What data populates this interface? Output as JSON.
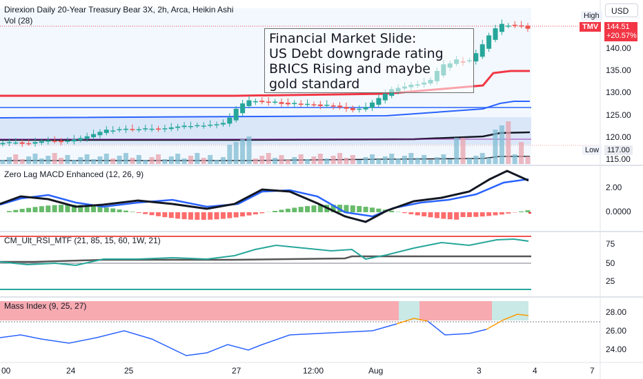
{
  "main": {
    "title": "Direxion Daily 20-Year Treasury Bear 3X, 2h, Arca, Heikin Ashi",
    "volume_title": "Vol (28)",
    "currency_button": "USD",
    "high_label": "High",
    "low_label": "Low",
    "low_value": "117.00",
    "ticker_tag": "TMV",
    "last_price": "144.51",
    "last_change": "+20.57%",
    "price_axis": [
      "140.00",
      "135.00",
      "130.00",
      "125.00",
      "120.00",
      "115.00"
    ]
  },
  "textbox": {
    "lines": [
      "Financial Market Slide:",
      "US Debt downgrade rating",
      "BRICS Rising and maybe",
      "gold standard"
    ]
  },
  "macd": {
    "title": "Zero Lag MACD Enhanced (12, 26, 9)",
    "axis": [
      "2.00",
      "0.0000"
    ]
  },
  "rsi": {
    "title": "CM_Ult_RSI_MTF (21, 85, 15, 60, 1W, 21)",
    "axis": [
      "75",
      "50",
      "25"
    ]
  },
  "mass": {
    "title": "Mass Index (9, 25, 27)",
    "axis": [
      "28.00",
      "26.00",
      "24.00"
    ]
  },
  "time_axis": [
    "00",
    "24",
    "25",
    "27",
    "12:00",
    "Aug",
    "3",
    "4",
    "7"
  ],
  "colors": {
    "up": "#26a69a",
    "down": "#ef5350",
    "accent_red": "#f23645",
    "blue": "#2962ff",
    "black": "#131722"
  },
  "chart_data": [
    {
      "type": "candlestick",
      "series_name": "TMV Heikin Ashi",
      "closes": [
        118.8,
        119.0,
        118.9,
        118.6,
        118.7,
        119.0,
        119.2,
        119.4,
        119.2,
        119.0,
        119.3,
        119.6,
        119.9,
        120.3,
        120.8,
        121.3,
        121.8,
        121.6,
        121.9,
        122.0,
        121.8,
        121.9,
        122.1,
        122.0,
        121.8,
        122.1,
        122.3,
        122.5,
        122.7,
        122.6,
        122.8,
        122.7,
        122.9,
        123.0,
        123.3,
        124.5,
        126.5,
        127.7,
        128.4,
        128.2,
        128.0,
        127.9,
        128.1,
        127.6,
        127.5,
        127.8,
        127.4,
        127.6,
        127.3,
        127.1,
        127.4,
        127.0,
        126.8,
        126.5,
        126.2,
        126.5,
        126.9,
        127.9,
        128.9,
        129.9,
        130.9,
        131.2,
        131.5,
        131.9,
        132.0,
        132.4,
        133.0,
        135.0,
        136.5,
        136.7,
        137.6,
        136.9,
        137.4,
        139.0,
        141.0,
        143.0,
        144.6,
        145.6,
        145.2,
        145.3,
        145.1,
        144.5
      ],
      "price_range": [
        115,
        148
      ]
    },
    {
      "type": "line",
      "title": "Zero Lag MACD Enhanced (12, 26, 9)",
      "ylim": [
        -1.5,
        3.5
      ]
    },
    {
      "type": "line",
      "title": "CM_Ult_RSI_MTF (21, 85, 15, 60, 1W, 21)",
      "ylim": [
        0,
        100
      ]
    },
    {
      "type": "line",
      "title": "Mass Index (9, 25, 27)",
      "ylim": [
        23.2,
        29.5
      ]
    }
  ]
}
